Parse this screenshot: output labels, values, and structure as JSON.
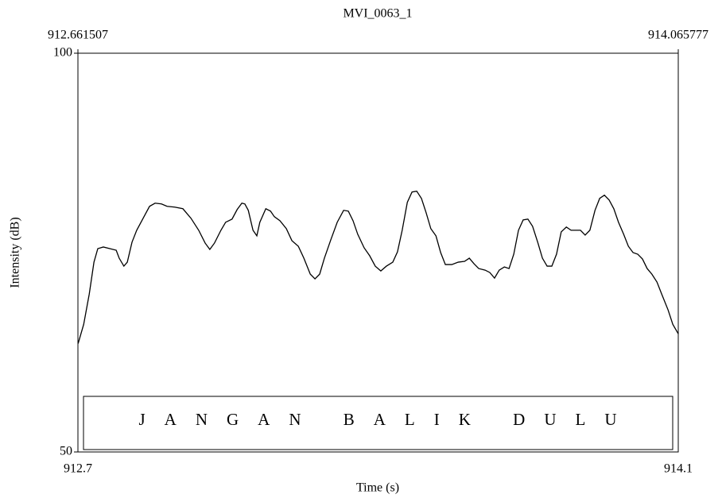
{
  "chart_data": {
    "type": "line",
    "title": "MVI_0063_1",
    "x_label": "Time (s)",
    "y_label": "Intensity (dB)",
    "annotation": "JANGAN BALIK DULU",
    "xlim": [
      912.661507,
      914.065777
    ],
    "ylim": [
      50,
      100
    ],
    "xticks": [
      {
        "value": 912.661507,
        "label": "912.7"
      },
      {
        "value": 914.065777,
        "label": "914.1"
      }
    ],
    "yticks": [
      50,
      100
    ],
    "color": "#000000",
    "x": [
      912.662,
      912.675,
      912.688,
      912.699,
      912.708,
      912.721,
      912.736,
      912.751,
      912.758,
      912.769,
      912.777,
      912.788,
      912.799,
      912.814,
      912.829,
      912.842,
      912.857,
      912.87,
      912.888,
      912.907,
      912.926,
      912.944,
      912.959,
      912.97,
      912.981,
      912.996,
      913.007,
      913.022,
      913.034,
      913.045,
      913.052,
      913.06,
      913.071,
      913.08,
      913.087,
      913.101,
      913.112,
      913.121,
      913.134,
      913.149,
      913.162,
      913.177,
      913.19,
      913.205,
      913.216,
      913.227,
      913.238,
      913.253,
      913.268,
      913.283,
      913.294,
      913.305,
      913.316,
      913.331,
      913.344,
      913.357,
      913.37,
      913.383,
      913.398,
      913.409,
      913.42,
      913.432,
      913.443,
      913.454,
      913.465,
      913.476,
      913.487,
      913.499,
      913.51,
      913.521,
      913.536,
      913.551,
      913.566,
      913.577,
      913.588,
      913.599,
      913.614,
      913.625,
      913.636,
      913.647,
      913.659,
      913.67,
      913.681,
      913.692,
      913.703,
      913.714,
      913.725,
      913.737,
      913.748,
      913.759,
      913.77,
      913.781,
      913.792,
      913.804,
      913.815,
      913.826,
      913.837,
      913.848,
      913.859,
      913.871,
      913.882,
      913.893,
      913.904,
      913.915,
      913.926,
      913.938,
      913.949,
      913.96,
      913.971,
      913.982,
      913.993,
      914.004,
      914.016,
      914.027,
      914.042,
      914.053,
      914.066
    ],
    "values": [
      63.6,
      66.0,
      69.8,
      73.8,
      75.5,
      75.7,
      75.5,
      75.3,
      74.3,
      73.3,
      73.8,
      76.3,
      77.8,
      79.3,
      80.8,
      81.2,
      81.1,
      80.8,
      80.7,
      80.5,
      79.3,
      77.8,
      76.2,
      75.4,
      76.2,
      77.8,
      78.8,
      79.2,
      80.4,
      81.2,
      81.1,
      80.3,
      77.8,
      77.1,
      78.8,
      80.5,
      80.2,
      79.5,
      79.0,
      78.0,
      76.5,
      75.8,
      74.3,
      72.3,
      71.7,
      72.3,
      74.3,
      76.6,
      78.8,
      80.3,
      80.2,
      79.0,
      77.3,
      75.6,
      74.6,
      73.3,
      72.7,
      73.3,
      73.8,
      75.1,
      77.8,
      81.3,
      82.6,
      82.7,
      81.8,
      80.0,
      78.0,
      77.1,
      75.0,
      73.5,
      73.5,
      73.8,
      73.9,
      74.3,
      73.6,
      73.0,
      72.8,
      72.5,
      71.8,
      72.8,
      73.2,
      73.0,
      74.8,
      77.8,
      79.1,
      79.2,
      78.3,
      76.3,
      74.3,
      73.3,
      73.3,
      74.8,
      77.6,
      78.2,
      77.8,
      77.8,
      77.8,
      77.2,
      77.8,
      80.3,
      81.8,
      82.2,
      81.6,
      80.5,
      78.8,
      77.3,
      75.8,
      75.0,
      74.8,
      74.2,
      73.0,
      72.3,
      71.3,
      69.8,
      67.8,
      66.0,
      64.8
    ]
  }
}
